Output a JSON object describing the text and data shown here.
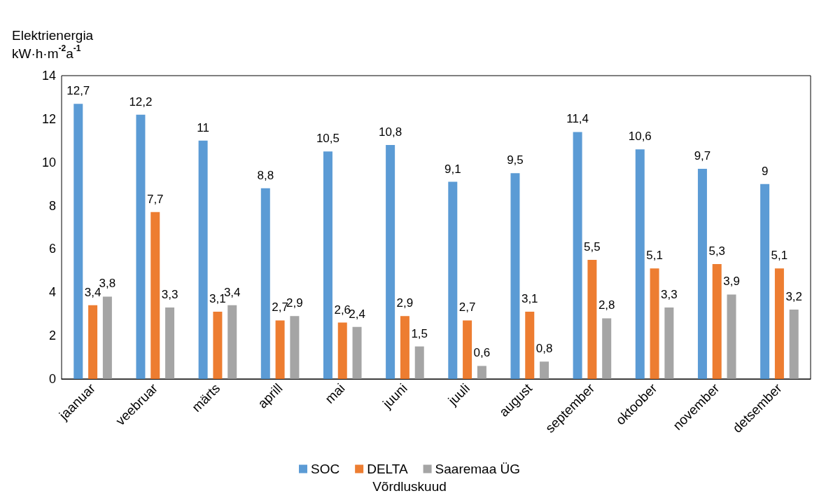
{
  "chart_data": {
    "type": "bar",
    "ylabel": "Elektrienergia\nkW·h·m$^{-2}$a$^{-1}$",
    "xlabel": "Võrdluskuud",
    "categories": [
      "jaanuar",
      "veebruar",
      "märts",
      "aprill",
      "mai",
      "juuni",
      "juuli",
      "august",
      "september",
      "oktoober",
      "november",
      "detsember"
    ],
    "series": [
      {
        "name": "SOC",
        "color": "#5b9bd5",
        "values": [
          12.7,
          12.2,
          11,
          8.8,
          10.5,
          10.8,
          9.1,
          9.5,
          11.4,
          10.6,
          9.7,
          9
        ],
        "value_labels": [
          "12,7",
          "12,2",
          "11",
          "8,8",
          "10,5",
          "10,8",
          "9,1",
          "9,5",
          "11,4",
          "10,6",
          "9,7",
          "9"
        ]
      },
      {
        "name": "DELTA",
        "color": "#ed7d31",
        "values": [
          3.4,
          7.7,
          3.1,
          2.7,
          2.6,
          2.9,
          2.7,
          3.1,
          5.5,
          5.1,
          5.3,
          5.1
        ],
        "value_labels": [
          "3,4",
          "7,7",
          "3,1",
          "2,7",
          "2,6",
          "2,9",
          "2,7",
          "3,1",
          "5,5",
          "5,1",
          "5,3",
          "5,1"
        ]
      },
      {
        "name": "Saaremaa ÜG",
        "color": "#a5a5a5",
        "values": [
          3.8,
          3.3,
          3.4,
          2.9,
          2.4,
          1.5,
          0.6,
          0.8,
          2.8,
          3.3,
          3.9,
          3.2
        ],
        "value_labels": [
          "3,8",
          "3,3",
          "3,4",
          "2,9",
          "2,4",
          "1,5",
          "0,6",
          "0,8",
          "2,8",
          "3,3",
          "3,9",
          "3,2"
        ]
      }
    ],
    "ylim": [
      0,
      14
    ],
    "yticks": [
      0,
      2,
      4,
      6,
      8,
      10,
      12,
      14
    ],
    "grid": false,
    "legend": "bottom"
  }
}
